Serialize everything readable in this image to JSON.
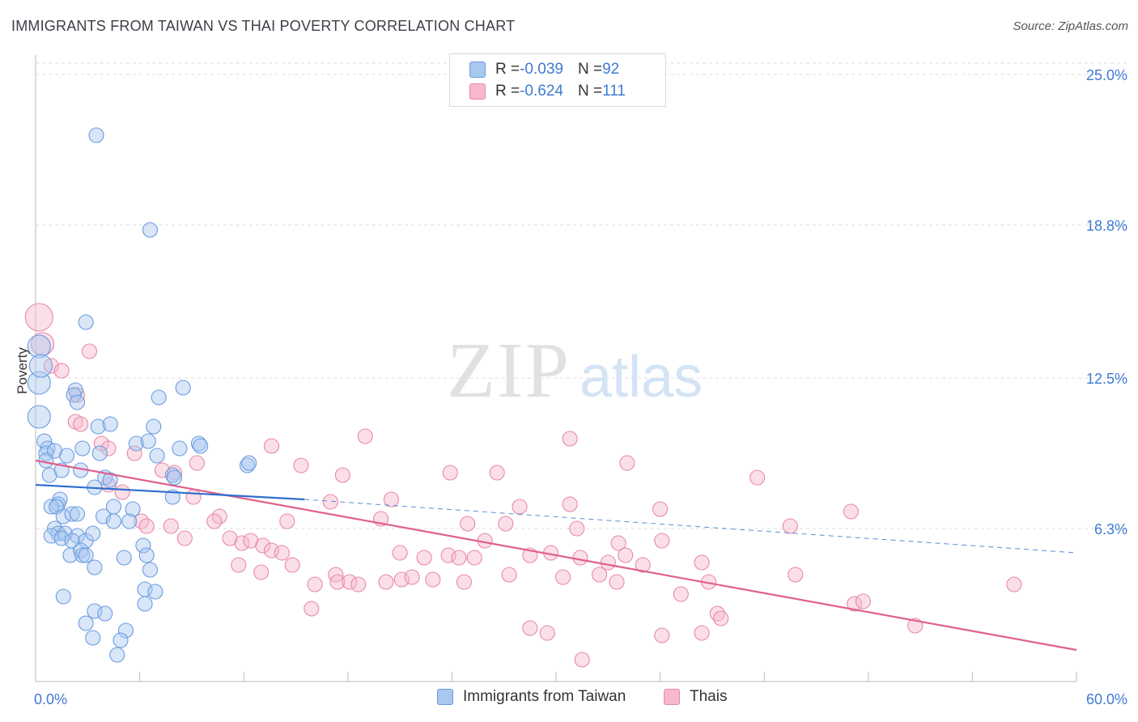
{
  "title": "IMMIGRANTS FROM TAIWAN VS THAI POVERTY CORRELATION CHART",
  "source": "Source: ZipAtlas.com",
  "watermark": {
    "zip": "ZIP",
    "atlas": "atlas"
  },
  "legend": {
    "rows": [
      {
        "r_label": "R = ",
        "r_value": "-0.039",
        "n_label": "N = ",
        "n_value": "92"
      },
      {
        "r_label": "R = ",
        "r_value": "-0.624",
        "n_label": "N = ",
        "n_value": "111"
      }
    ]
  },
  "bottom_legend": [
    "Immigrants from Taiwan",
    "Thais"
  ],
  "colors": {
    "blue_fill": "#a8c8f0",
    "blue_stroke": "#6a9be0",
    "blue_line": "#2f6fcf",
    "pink_fill": "#f7b8cc",
    "pink_stroke": "#e888a8",
    "pink_line": "#e0608c",
    "tick_label": "#3f7ad4",
    "grid": "#dcdcdc"
  },
  "chart_data": {
    "type": "scatter",
    "title": "IMMIGRANTS FROM TAIWAN VS THAI POVERTY CORRELATION CHART",
    "xlabel": "",
    "ylabel": "Poverty",
    "xlim": [
      0,
      60
    ],
    "ylim": [
      0,
      25.8
    ],
    "x_tick_labels": [
      "0.0%",
      "60.0%"
    ],
    "y_ticks": [
      {
        "value": 6.3,
        "label": "6.3%"
      },
      {
        "value": 12.5,
        "label": "12.5%"
      },
      {
        "value": 18.8,
        "label": "18.8%"
      },
      {
        "value": 25.0,
        "label": "25.0%"
      }
    ],
    "grid": true,
    "legend_position": "top-center",
    "series": [
      {
        "name": "Immigrants from Taiwan",
        "r": -0.039,
        "n": 92,
        "trend": {
          "x": [
            0,
            15.5
          ],
          "y": [
            8.1,
            7.5
          ],
          "dashed_to": [
            60,
            5.3
          ]
        },
        "points": [
          [
            3.5,
            22.5
          ],
          [
            6.6,
            18.6
          ],
          [
            2.9,
            14.8
          ],
          [
            0.2,
            13.8
          ],
          [
            0.2,
            12.3
          ],
          [
            0.3,
            13.0
          ],
          [
            0.2,
            10.9
          ],
          [
            2.3,
            12.0
          ],
          [
            2.2,
            11.8
          ],
          [
            2.4,
            11.5
          ],
          [
            8.5,
            12.1
          ],
          [
            7.1,
            11.7
          ],
          [
            0.5,
            9.9
          ],
          [
            0.7,
            9.6
          ],
          [
            0.6,
            9.4
          ],
          [
            1.1,
            9.5
          ],
          [
            1.8,
            9.3
          ],
          [
            2.7,
            9.6
          ],
          [
            3.6,
            10.5
          ],
          [
            4.3,
            10.6
          ],
          [
            3.7,
            9.4
          ],
          [
            5.8,
            9.8
          ],
          [
            6.5,
            9.9
          ],
          [
            6.8,
            10.5
          ],
          [
            7.0,
            9.3
          ],
          [
            8.3,
            9.6
          ],
          [
            9.4,
            9.8
          ],
          [
            9.5,
            9.7
          ],
          [
            12.2,
            8.9
          ],
          [
            12.3,
            9.0
          ],
          [
            0.6,
            9.1
          ],
          [
            0.8,
            8.5
          ],
          [
            1.5,
            8.7
          ],
          [
            2.6,
            8.7
          ],
          [
            3.4,
            8.0
          ],
          [
            4.0,
            8.4
          ],
          [
            4.3,
            8.3
          ],
          [
            7.9,
            8.5
          ],
          [
            8.0,
            8.4
          ],
          [
            7.9,
            7.6
          ],
          [
            1.4,
            7.5
          ],
          [
            1.3,
            7.3
          ],
          [
            0.9,
            7.2
          ],
          [
            1.2,
            7.2
          ],
          [
            4.5,
            7.2
          ],
          [
            5.6,
            7.1
          ],
          [
            1.6,
            6.8
          ],
          [
            2.1,
            6.9
          ],
          [
            2.4,
            6.9
          ],
          [
            3.9,
            6.8
          ],
          [
            4.5,
            6.6
          ],
          [
            5.4,
            6.6
          ],
          [
            1.1,
            6.3
          ],
          [
            1.3,
            6.1
          ],
          [
            1.7,
            6.1
          ],
          [
            0.9,
            6.0
          ],
          [
            1.5,
            5.9
          ],
          [
            2.4,
            6.0
          ],
          [
            2.1,
            5.8
          ],
          [
            2.9,
            5.8
          ],
          [
            3.3,
            6.1
          ],
          [
            6.2,
            5.6
          ],
          [
            2.0,
            5.2
          ],
          [
            2.6,
            5.4
          ],
          [
            2.7,
            5.2
          ],
          [
            2.9,
            5.2
          ],
          [
            3.4,
            4.7
          ],
          [
            5.1,
            5.1
          ],
          [
            6.4,
            5.2
          ],
          [
            6.6,
            4.6
          ],
          [
            1.6,
            3.5
          ],
          [
            6.3,
            3.8
          ],
          [
            6.9,
            3.7
          ],
          [
            6.3,
            3.2
          ],
          [
            3.4,
            2.9
          ],
          [
            4.0,
            2.8
          ],
          [
            2.9,
            2.4
          ],
          [
            5.2,
            2.1
          ],
          [
            3.3,
            1.8
          ],
          [
            4.9,
            1.7
          ],
          [
            4.7,
            1.1
          ]
        ]
      },
      {
        "name": "Thais",
        "r": -0.624,
        "n": 111,
        "trend": {
          "x": [
            0,
            60
          ],
          "y": [
            9.1,
            1.3
          ]
        },
        "points": [
          [
            0.2,
            15.0
          ],
          [
            0.4,
            13.9
          ],
          [
            3.1,
            13.6
          ],
          [
            0.9,
            13.0
          ],
          [
            1.5,
            12.8
          ],
          [
            2.4,
            11.8
          ],
          [
            2.3,
            10.7
          ],
          [
            2.6,
            10.6
          ],
          [
            19.0,
            10.1
          ],
          [
            30.8,
            10.0
          ],
          [
            3.8,
            9.8
          ],
          [
            4.2,
            9.6
          ],
          [
            5.7,
            9.4
          ],
          [
            13.6,
            9.7
          ],
          [
            9.3,
            9.0
          ],
          [
            15.3,
            8.9
          ],
          [
            34.1,
            9.0
          ],
          [
            7.3,
            8.7
          ],
          [
            8.0,
            8.6
          ],
          [
            17.7,
            8.5
          ],
          [
            23.9,
            8.6
          ],
          [
            26.6,
            8.6
          ],
          [
            41.6,
            8.4
          ],
          [
            4.2,
            8.1
          ],
          [
            5.0,
            7.8
          ],
          [
            9.1,
            7.6
          ],
          [
            20.5,
            7.5
          ],
          [
            17.0,
            7.4
          ],
          [
            27.9,
            7.2
          ],
          [
            30.8,
            7.3
          ],
          [
            36.0,
            7.1
          ],
          [
            47.0,
            7.0
          ],
          [
            10.6,
            6.8
          ],
          [
            10.3,
            6.6
          ],
          [
            6.1,
            6.6
          ],
          [
            6.4,
            6.4
          ],
          [
            7.8,
            6.4
          ],
          [
            14.5,
            6.6
          ],
          [
            19.9,
            6.7
          ],
          [
            24.9,
            6.5
          ],
          [
            27.1,
            6.5
          ],
          [
            31.2,
            6.3
          ],
          [
            43.5,
            6.4
          ],
          [
            8.6,
            5.9
          ],
          [
            11.2,
            5.9
          ],
          [
            11.9,
            5.7
          ],
          [
            12.4,
            5.8
          ],
          [
            13.1,
            5.6
          ],
          [
            13.6,
            5.4
          ],
          [
            14.2,
            5.3
          ],
          [
            21.0,
            5.3
          ],
          [
            22.4,
            5.1
          ],
          [
            23.8,
            5.2
          ],
          [
            24.4,
            5.1
          ],
          [
            25.3,
            5.1
          ],
          [
            25.9,
            5.8
          ],
          [
            28.5,
            5.2
          ],
          [
            29.7,
            5.3
          ],
          [
            31.4,
            5.1
          ],
          [
            33.0,
            4.9
          ],
          [
            33.6,
            5.7
          ],
          [
            34.0,
            5.2
          ],
          [
            36.1,
            5.8
          ],
          [
            35.0,
            4.8
          ],
          [
            38.4,
            4.9
          ],
          [
            11.7,
            4.8
          ],
          [
            13.0,
            4.5
          ],
          [
            14.8,
            4.8
          ],
          [
            16.1,
            4.0
          ],
          [
            17.3,
            4.4
          ],
          [
            17.4,
            4.1
          ],
          [
            18.1,
            4.1
          ],
          [
            18.6,
            4.0
          ],
          [
            20.2,
            4.1
          ],
          [
            21.1,
            4.2
          ],
          [
            21.7,
            4.3
          ],
          [
            22.9,
            4.2
          ],
          [
            24.7,
            4.1
          ],
          [
            27.3,
            4.4
          ],
          [
            30.4,
            4.3
          ],
          [
            32.5,
            4.4
          ],
          [
            33.5,
            4.1
          ],
          [
            37.2,
            3.6
          ],
          [
            38.8,
            4.1
          ],
          [
            43.8,
            4.4
          ],
          [
            47.2,
            3.2
          ],
          [
            47.7,
            3.3
          ],
          [
            56.4,
            4.0
          ],
          [
            15.9,
            3.0
          ],
          [
            39.3,
            2.8
          ],
          [
            39.5,
            2.6
          ],
          [
            28.5,
            2.2
          ],
          [
            29.5,
            2.0
          ],
          [
            36.1,
            1.9
          ],
          [
            38.4,
            2.0
          ],
          [
            50.7,
            2.3
          ],
          [
            31.5,
            0.9
          ]
        ]
      }
    ]
  }
}
